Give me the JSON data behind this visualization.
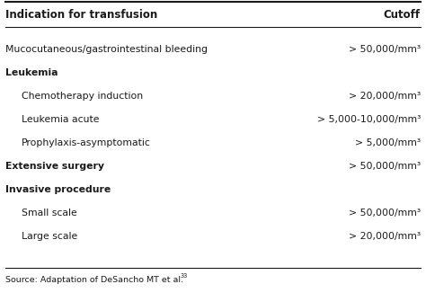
{
  "header_left": "Indication for transfusion",
  "header_right": "Cutoff",
  "rows": [
    {
      "indent": 0,
      "bold": false,
      "left": "Mucocutaneous/gastrointestinal bleeding",
      "right": "> 50,000/mm³"
    },
    {
      "indent": 0,
      "bold": true,
      "left": "Leukemia",
      "right": ""
    },
    {
      "indent": 1,
      "bold": false,
      "left": "Chemotherapy induction",
      "right": "> 20,000/mm³"
    },
    {
      "indent": 1,
      "bold": false,
      "left": "Leukemia acute",
      "right": "> 5,000-10,000/mm³"
    },
    {
      "indent": 1,
      "bold": false,
      "left": "Prophylaxis-asymptomatic",
      "right": "> 5,000/mm³"
    },
    {
      "indent": 0,
      "bold": true,
      "left": "Extensive surgery",
      "right": "> 50,000/mm³"
    },
    {
      "indent": 0,
      "bold": true,
      "left": "Invasive procedure",
      "right": ""
    },
    {
      "indent": 1,
      "bold": false,
      "left": "Small scale",
      "right": "> 50,000/mm³"
    },
    {
      "indent": 1,
      "bold": false,
      "left": "Large scale",
      "right": "> 20,000/mm³"
    }
  ],
  "footer": "Source: Adaptation of DeSancho MT et al.",
  "footer_superscript": "33",
  "bg_color": "#ffffff",
  "border_color": "#1a1a1a",
  "text_color": "#1a1a1a",
  "header_font_size": 8.5,
  "row_font_size": 7.8,
  "footer_font_size": 6.8,
  "fig_width": 4.74,
  "fig_height": 3.26,
  "dpi": 100
}
